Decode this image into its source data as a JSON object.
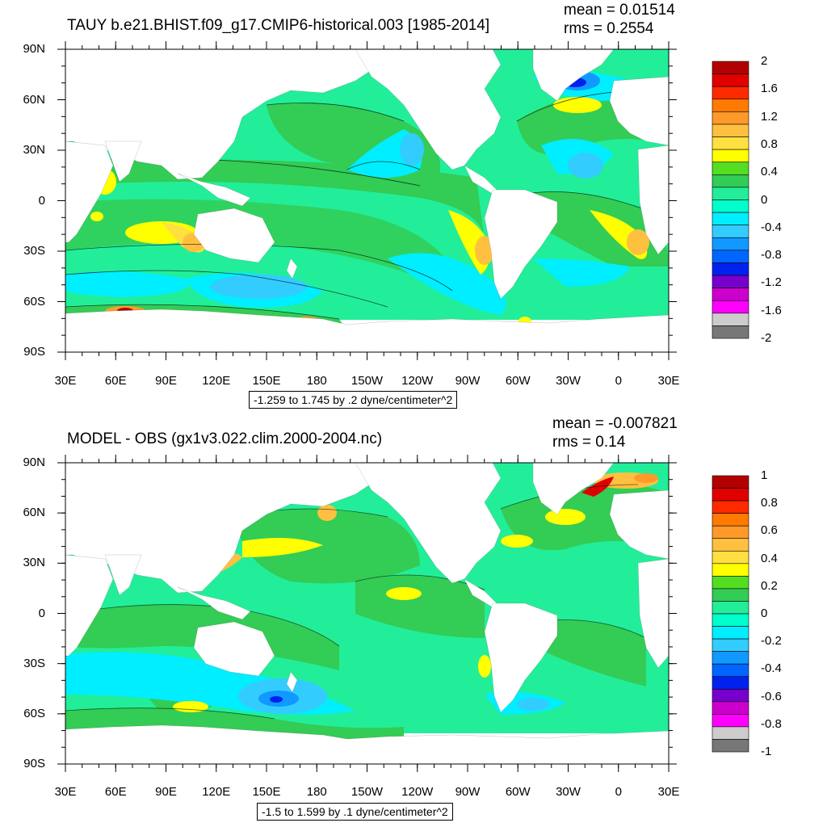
{
  "panels": [
    {
      "title": "TAUY b.e21.BHIST.f09_g17.CMIP6-historical.003 [1985-2014]",
      "mean": "mean = 0.01514",
      "rms": "rms = 0.2554",
      "note": "-1.259 to 1.745 by .2 dyne/centimeter^2",
      "lat_labels": [
        "90N",
        "60N",
        "30N",
        "0",
        "30S",
        "60S",
        "90S"
      ],
      "lon_labels": [
        "30E",
        "60E",
        "90E",
        "120E",
        "150E",
        "180",
        "150W",
        "120W",
        "90W",
        "60W",
        "30W",
        "0",
        "30E"
      ],
      "colorbar": {
        "labels": [
          "2",
          "1.6",
          "1.2",
          "0.8",
          "0.4",
          "0",
          "-0.4",
          "-0.8",
          "-1.2",
          "-1.6",
          "-2"
        ],
        "colors": [
          "#b30000",
          "#e00000",
          "#ff2a00",
          "#ff7a00",
          "#ff9a2a",
          "#ffc040",
          "#ffe040",
          "#ffff00",
          "#55dd22",
          "#33cc55",
          "#22ee99",
          "#00ffcc",
          "#00eeff",
          "#33ccff",
          "#1199ff",
          "#0066ff",
          "#0022ee",
          "#7700cc",
          "#cc00cc",
          "#ff00ff",
          "#cccccc",
          "#777777"
        ]
      }
    },
    {
      "title": "MODEL - OBS (gx1v3.022.clim.2000-2004.nc)",
      "mean": "mean = -0.007821",
      "rms": "rms = 0.14",
      "note": "-1.5 to 1.599 by .1 dyne/centimeter^2",
      "lat_labels": [
        "90N",
        "60N",
        "30N",
        "0",
        "30S",
        "60S",
        "90S"
      ],
      "lon_labels": [
        "30E",
        "60E",
        "90E",
        "120E",
        "150E",
        "180",
        "150W",
        "120W",
        "90W",
        "60W",
        "30W",
        "0",
        "30E"
      ],
      "colorbar": {
        "labels": [
          "1",
          "0.8",
          "0.6",
          "0.4",
          "0.2",
          "0",
          "-0.2",
          "-0.4",
          "-0.6",
          "-0.8",
          "-1"
        ],
        "colors": [
          "#b30000",
          "#e00000",
          "#ff2a00",
          "#ff7a00",
          "#ff9a2a",
          "#ffc040",
          "#ffe040",
          "#ffff00",
          "#55dd22",
          "#33cc55",
          "#22ee99",
          "#00ffcc",
          "#00eeff",
          "#33ccff",
          "#1199ff",
          "#0066ff",
          "#0022ee",
          "#7700cc",
          "#cc00cc",
          "#ff00ff",
          "#cccccc",
          "#777777"
        ]
      }
    }
  ]
}
